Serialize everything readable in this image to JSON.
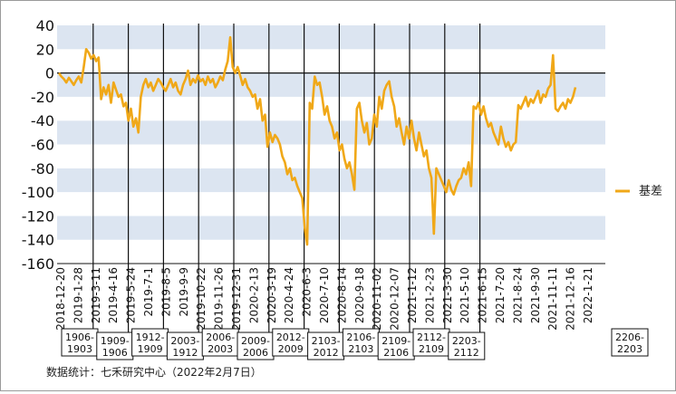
{
  "chart_data": {
    "type": "line",
    "title": "",
    "xlabel": "",
    "ylabel": "",
    "ylim": [
      -160,
      40
    ],
    "yticks": [
      40,
      20,
      0,
      -20,
      -40,
      -60,
      -80,
      -100,
      -120,
      -140,
      -160
    ],
    "grid": "horizontal bands",
    "legend_position": "right",
    "x_tick_labels": [
      "2018-12-20",
      "2019-1-28",
      "2019-3-11",
      "2019-4-16",
      "2019-5-24",
      "2019-7-1",
      "2019-8-5",
      "2019-9-9",
      "2019-10-22",
      "2019-11-26",
      "2019-12-31",
      "2020-2-13",
      "2020-3-19",
      "2020-4-24",
      "2020-6-3",
      "2020-7-10",
      "2020-8-14",
      "2020-9-18",
      "2020-11-02",
      "2020-12-07",
      "2021-1-12",
      "2021-2-23",
      "2021-3-30",
      "2021-5-10",
      "2021-6-15",
      "2021-7-20",
      "2021-8-24",
      "2021-9-30",
      "2021-11-11",
      "2021-12-16",
      "2022-1-21"
    ],
    "contract_windows": [
      "1906-1903",
      "1909-1906",
      "1912-1909",
      "2003-1912",
      "2006-2003",
      "2009-2006",
      "2012-2009",
      "2103-2012",
      "2106-2103",
      "2109-2106",
      "2112-2109",
      "2203-2112",
      "2206-2203"
    ],
    "series": [
      {
        "name": "基差",
        "color": "#f0a818",
        "values": [
          0,
          -3,
          -5,
          -8,
          -4,
          -7,
          -10,
          -6,
          -3,
          -8,
          5,
          20,
          17,
          12,
          15,
          10,
          13,
          -22,
          -12,
          -18,
          -10,
          -25,
          -8,
          -14,
          -20,
          -18,
          -28,
          -25,
          -40,
          -30,
          -45,
          -38,
          -50,
          -20,
          -10,
          -5,
          -12,
          -8,
          -15,
          -10,
          -5,
          -8,
          -12,
          -15,
          -10,
          -5,
          -12,
          -8,
          -15,
          -18,
          -10,
          -5,
          2,
          -10,
          -5,
          -8,
          -2,
          -7,
          -5,
          -10,
          -3,
          -8,
          -5,
          -12,
          -8,
          -3,
          -6,
          3,
          10,
          30,
          5,
          0,
          5,
          -2,
          -10,
          -5,
          -12,
          -15,
          -20,
          -18,
          -30,
          -22,
          -40,
          -35,
          -62,
          -50,
          -58,
          -52,
          -55,
          -60,
          -70,
          -75,
          -85,
          -80,
          -90,
          -88,
          -95,
          -100,
          -105,
          -130,
          -144,
          -25,
          -30,
          -3,
          -10,
          -8,
          -20,
          -35,
          -28,
          -40,
          -45,
          -55,
          -50,
          -65,
          -60,
          -72,
          -80,
          -75,
          -85,
          -98,
          -30,
          -25,
          -40,
          -50,
          -42,
          -60,
          -55,
          -35,
          -45,
          -20,
          -30,
          -15,
          -10,
          -7,
          -20,
          -28,
          -45,
          -38,
          -50,
          -60,
          -45,
          -55,
          -40,
          -55,
          -65,
          -50,
          -60,
          -70,
          -65,
          -80,
          -88,
          -135,
          -80,
          -85,
          -90,
          -95,
          -100,
          -90,
          -98,
          -102,
          -95,
          -90,
          -88,
          -80,
          -85,
          -75,
          -95,
          -28,
          -30,
          -25,
          -35,
          -28,
          -38,
          -45,
          -42,
          -50,
          -55,
          -60,
          -45,
          -55,
          -62,
          -58,
          -65,
          -60,
          -58,
          -27,
          -30,
          -25,
          -20,
          -28,
          -22,
          -25,
          -20,
          -15,
          -25,
          -18,
          -20,
          -13,
          -10,
          15,
          -30,
          -32,
          -28,
          -25,
          -30,
          -22,
          -25,
          -20,
          -12
        ]
      }
    ],
    "source_note": "数据统计：七禾研究中心（2022年2月7日）"
  }
}
